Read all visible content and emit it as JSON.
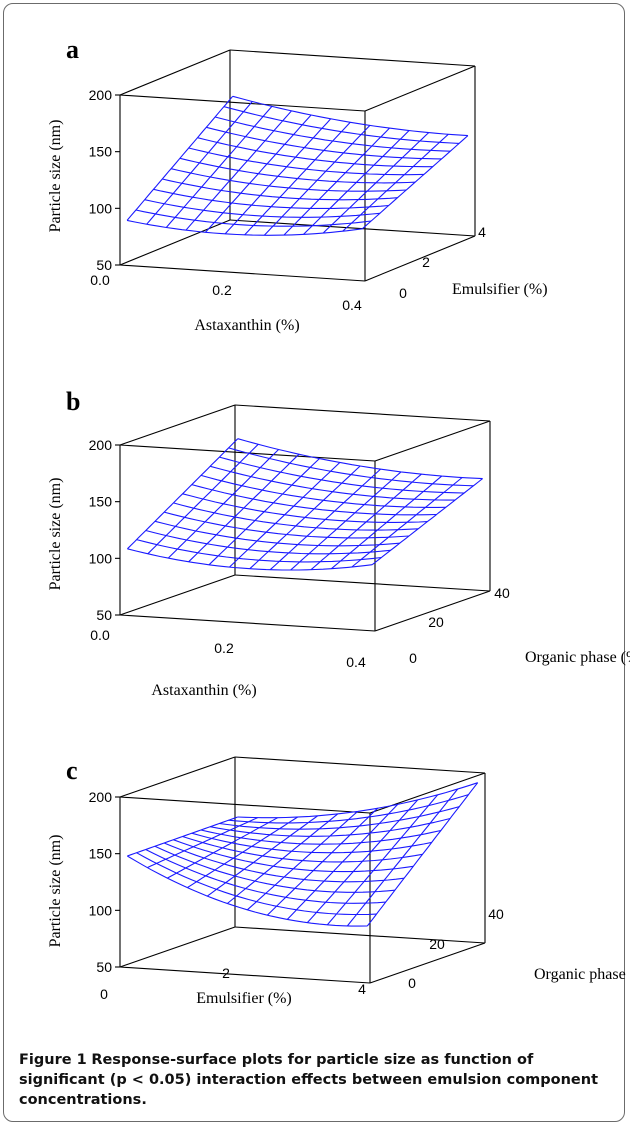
{
  "caption": {
    "figure_number": "Figure 1",
    "text": "Response-surface plots for particle size as function of significant (p < 0.05) interaction effects between emulsion component concentrations."
  },
  "colors": {
    "surface": "#1a1aff",
    "frame": "#6b6b6b",
    "axes": "#000000"
  },
  "chart_data": [
    {
      "panel": "a",
      "type": "surface",
      "zlabel": "Particle size (nm)",
      "xlabel": "Astaxanthin (%)",
      "ylabel": "Emulsifier (%)",
      "x_ticks": [
        "0.0",
        "0.2",
        "0.4"
      ],
      "y_ticks": [
        "0",
        "2",
        "4"
      ],
      "z_ticks": [
        "50",
        "100",
        "150",
        "200"
      ],
      "xlim": [
        0,
        0.4
      ],
      "ylim": [
        0,
        4
      ],
      "zlim": [
        50,
        200
      ],
      "surface": {
        "x": [
          0,
          0.4
        ],
        "y": [
          0,
          4
        ],
        "corners": {
          "x0_y0": 92,
          "x1_y0": 95,
          "x0_y1": 165,
          "x1_y1": 140
        },
        "valley_depth": 12,
        "min_at_x": 0.45,
        "grid_size": 12
      }
    },
    {
      "panel": "b",
      "type": "surface",
      "zlabel": "Particle size (nm)",
      "xlabel": "Astaxanthin (%)",
      "ylabel": "Organic phase (%)",
      "x_ticks": [
        "0.0",
        "0.2",
        "0.4"
      ],
      "y_ticks": [
        "0",
        "20",
        "40"
      ],
      "z_ticks": [
        "50",
        "100",
        "150",
        "200"
      ],
      "xlim": [
        0,
        0.4
      ],
      "ylim": [
        0,
        40
      ],
      "zlim": [
        50,
        200
      ],
      "surface": {
        "x": [
          0,
          0.4
        ],
        "y": [
          0,
          40
        ],
        "corners": {
          "x0_y0": 110,
          "x1_y0": 110,
          "x0_y1": 175,
          "x1_y1": 152
        },
        "valley_depth": 14,
        "min_at_x": 0.5,
        "grid_size": 12
      }
    },
    {
      "panel": "c",
      "type": "surface",
      "zlabel": "Particle size (nm)",
      "xlabel": "Emulsifier (%)",
      "ylabel": "Organic phase (%)",
      "x_ticks": [
        "0",
        "2",
        "4"
      ],
      "y_ticks": [
        "0",
        "20",
        "40"
      ],
      "z_ticks": [
        "50",
        "100",
        "150",
        "200"
      ],
      "xlim": [
        0,
        4
      ],
      "ylim": [
        0,
        40
      ],
      "zlim": [
        50,
        200
      ],
      "surface": {
        "x": [
          0,
          4
        ],
        "y": [
          0,
          40
        ],
        "corners": {
          "x0_y0": 150,
          "x1_y0": 105,
          "x0_y1": 148,
          "x1_y1": 200
        },
        "valley_depth": 22,
        "min_at_x": 0.55,
        "grid_size": 12
      }
    }
  ]
}
